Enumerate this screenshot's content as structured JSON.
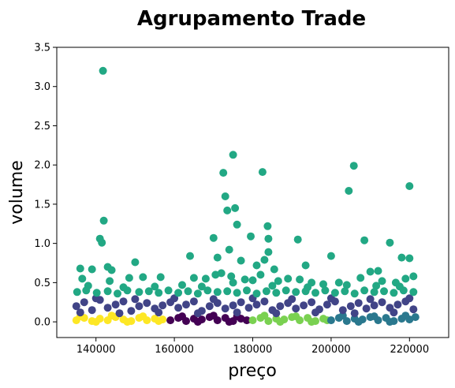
{
  "chart_data": {
    "type": "scatter",
    "title": "Agrupamento Trade",
    "xlabel": "preço",
    "ylabel": "volume",
    "xlim": [
      130000,
      230000
    ],
    "ylim": [
      -0.2,
      3.5
    ],
    "xticks": [
      140000,
      160000,
      180000,
      200000,
      220000
    ],
    "yticks": [
      0.0,
      0.5,
      1.0,
      1.5,
      2.0,
      2.5,
      3.0,
      3.5
    ],
    "xtick_labels": [
      "140000",
      "160000",
      "180000",
      "200000",
      "220000"
    ],
    "ytick_labels": [
      "0.0",
      "0.5",
      "1.0",
      "1.5",
      "2.0",
      "2.5",
      "3.0",
      "3.5"
    ],
    "grid": false,
    "series": [
      {
        "color": "#fde725",
        "points": [
          [
            135000,
            0.02
          ],
          [
            137000,
            0.05
          ],
          [
            139000,
            0.01
          ],
          [
            141000,
            0.04
          ],
          [
            143000,
            0.02
          ],
          [
            145000,
            0.06
          ],
          [
            147000,
            0.03
          ],
          [
            149000,
            0.01
          ],
          [
            151000,
            0.05
          ],
          [
            153000,
            0.02
          ],
          [
            155000,
            0.04
          ],
          [
            157000,
            0.03
          ],
          [
            136000,
            0.07
          ],
          [
            144000,
            0.08
          ],
          [
            152000,
            0.07
          ],
          [
            140000,
            0.0
          ],
          [
            148000,
            0.0
          ],
          [
            156000,
            0.01
          ]
        ]
      },
      {
        "color": "#440154",
        "points": [
          [
            159000,
            0.02
          ],
          [
            161000,
            0.05
          ],
          [
            163000,
            0.01
          ],
          [
            165000,
            0.04
          ],
          [
            167000,
            0.03
          ],
          [
            169000,
            0.06
          ],
          [
            171000,
            0.02
          ],
          [
            173000,
            0.05
          ],
          [
            175000,
            0.01
          ],
          [
            177000,
            0.04
          ],
          [
            178500,
            0.02
          ],
          [
            162000,
            0.07
          ],
          [
            170000,
            0.08
          ],
          [
            176000,
            0.07
          ],
          [
            166000,
            0.0
          ],
          [
            174000,
            0.0
          ]
        ]
      },
      {
        "color": "#7ad151",
        "points": [
          [
            180000,
            0.02
          ],
          [
            182000,
            0.05
          ],
          [
            184000,
            0.01
          ],
          [
            186000,
            0.04
          ],
          [
            188000,
            0.03
          ],
          [
            190000,
            0.06
          ],
          [
            192000,
            0.02
          ],
          [
            194000,
            0.05
          ],
          [
            196000,
            0.01
          ],
          [
            198000,
            0.04
          ],
          [
            199000,
            0.02
          ],
          [
            183000,
            0.08
          ],
          [
            191000,
            0.07
          ],
          [
            187000,
            0.0
          ],
          [
            195000,
            0.0
          ]
        ]
      },
      {
        "color": "#2a788e",
        "points": [
          [
            200000,
            0.02
          ],
          [
            202000,
            0.05
          ],
          [
            204000,
            0.01
          ],
          [
            206000,
            0.04
          ],
          [
            208000,
            0.03
          ],
          [
            210000,
            0.06
          ],
          [
            212000,
            0.02
          ],
          [
            214000,
            0.05
          ],
          [
            216000,
            0.01
          ],
          [
            218000,
            0.04
          ],
          [
            220000,
            0.03
          ],
          [
            221500,
            0.06
          ],
          [
            203000,
            0.08
          ],
          [
            211000,
            0.07
          ],
          [
            219000,
            0.08
          ],
          [
            207000,
            0.0
          ],
          [
            215000,
            0.0
          ]
        ]
      },
      {
        "color": "#414487",
        "points": [
          [
            135000,
            0.2
          ],
          [
            137000,
            0.25
          ],
          [
            139000,
            0.15
          ],
          [
            141000,
            0.28
          ],
          [
            143000,
            0.18
          ],
          [
            145000,
            0.22
          ],
          [
            147000,
            0.26
          ],
          [
            149000,
            0.14
          ],
          [
            151000,
            0.2
          ],
          [
            153000,
            0.24
          ],
          [
            155000,
            0.17
          ],
          [
            157000,
            0.21
          ],
          [
            159000,
            0.25
          ],
          [
            161000,
            0.18
          ],
          [
            163000,
            0.22
          ],
          [
            165000,
            0.26
          ],
          [
            167000,
            0.14
          ],
          [
            169000,
            0.2
          ],
          [
            171000,
            0.24
          ],
          [
            173000,
            0.17
          ],
          [
            175000,
            0.21
          ],
          [
            177000,
            0.25
          ],
          [
            179000,
            0.18
          ],
          [
            181000,
            0.22
          ],
          [
            183000,
            0.26
          ],
          [
            185000,
            0.15
          ],
          [
            187000,
            0.2
          ],
          [
            189000,
            0.24
          ],
          [
            191000,
            0.17
          ],
          [
            193000,
            0.21
          ],
          [
            195000,
            0.25
          ],
          [
            197000,
            0.16
          ],
          [
            199000,
            0.22
          ],
          [
            201000,
            0.26
          ],
          [
            203000,
            0.15
          ],
          [
            205000,
            0.2
          ],
          [
            207000,
            0.24
          ],
          [
            209000,
            0.17
          ],
          [
            211000,
            0.21
          ],
          [
            213000,
            0.25
          ],
          [
            215000,
            0.18
          ],
          [
            217000,
            0.22
          ],
          [
            219000,
            0.26
          ],
          [
            221000,
            0.16
          ],
          [
            136000,
            0.12
          ],
          [
            146000,
            0.11
          ],
          [
            156000,
            0.12
          ],
          [
            166000,
            0.11
          ],
          [
            176000,
            0.12
          ],
          [
            186000,
            0.11
          ],
          [
            196000,
            0.12
          ],
          [
            206000,
            0.11
          ],
          [
            216000,
            0.12
          ],
          [
            140000,
            0.3
          ],
          [
            150000,
            0.29
          ],
          [
            160000,
            0.3
          ],
          [
            170000,
            0.29
          ],
          [
            180000,
            0.3
          ],
          [
            190000,
            0.29
          ],
          [
            200000,
            0.3
          ],
          [
            210000,
            0.29
          ],
          [
            220000,
            0.3
          ]
        ]
      },
      {
        "color": "#22a884",
        "points": [
          [
            141800,
            3.2
          ],
          [
            142000,
            1.29
          ],
          [
            141000,
            1.06
          ],
          [
            141500,
            1.01
          ],
          [
            175000,
            2.13
          ],
          [
            172500,
            1.9
          ],
          [
            182500,
            1.91
          ],
          [
            205800,
            1.99
          ],
          [
            220000,
            1.73
          ],
          [
            204500,
            1.67
          ],
          [
            173000,
            1.6
          ],
          [
            173500,
            1.42
          ],
          [
            175500,
            1.45
          ],
          [
            176000,
            1.24
          ],
          [
            183800,
            1.22
          ],
          [
            170000,
            1.07
          ],
          [
            179500,
            1.09
          ],
          [
            191500,
            1.05
          ],
          [
            184000,
            1.06
          ],
          [
            208500,
            1.04
          ],
          [
            215000,
            1.01
          ],
          [
            150000,
            0.76
          ],
          [
            143000,
            0.7
          ],
          [
            136000,
            0.68
          ],
          [
            139000,
            0.67
          ],
          [
            144000,
            0.66
          ],
          [
            148500,
            0.56
          ],
          [
            156500,
            0.57
          ],
          [
            164000,
            0.84
          ],
          [
            171000,
            0.82
          ],
          [
            174000,
            0.92
          ],
          [
            177000,
            0.78
          ],
          [
            181000,
            0.72
          ],
          [
            183000,
            0.79
          ],
          [
            184000,
            0.89
          ],
          [
            185500,
            0.67
          ],
          [
            193500,
            0.72
          ],
          [
            200000,
            0.84
          ],
          [
            212000,
            0.65
          ],
          [
            218000,
            0.82
          ],
          [
            220000,
            0.81
          ],
          [
            135200,
            0.38
          ],
          [
            137500,
            0.4
          ],
          [
            140200,
            0.37
          ],
          [
            143000,
            0.39
          ],
          [
            145500,
            0.36
          ],
          [
            148000,
            0.4
          ],
          [
            151000,
            0.38
          ],
          [
            153500,
            0.39
          ],
          [
            156000,
            0.37
          ],
          [
            158500,
            0.4
          ],
          [
            161000,
            0.37
          ],
          [
            163500,
            0.39
          ],
          [
            166000,
            0.36
          ],
          [
            168500,
            0.4
          ],
          [
            171000,
            0.38
          ],
          [
            173500,
            0.39
          ],
          [
            176000,
            0.37
          ],
          [
            178500,
            0.4
          ],
          [
            181000,
            0.36
          ],
          [
            183500,
            0.39
          ],
          [
            186000,
            0.37
          ],
          [
            188500,
            0.4
          ],
          [
            191000,
            0.38
          ],
          [
            193500,
            0.39
          ],
          [
            196000,
            0.37
          ],
          [
            198500,
            0.4
          ],
          [
            201000,
            0.37
          ],
          [
            203500,
            0.39
          ],
          [
            206000,
            0.36
          ],
          [
            208500,
            0.4
          ],
          [
            211000,
            0.38
          ],
          [
            213500,
            0.39
          ],
          [
            216000,
            0.37
          ],
          [
            218500,
            0.4
          ],
          [
            221000,
            0.38
          ],
          [
            136500,
            0.55
          ],
          [
            143500,
            0.52
          ],
          [
            152000,
            0.57
          ],
          [
            165000,
            0.56
          ],
          [
            168000,
            0.55
          ],
          [
            170500,
            0.6
          ],
          [
            172000,
            0.62
          ],
          [
            174500,
            0.58
          ],
          [
            178000,
            0.54
          ],
          [
            180000,
            0.53
          ],
          [
            182000,
            0.6
          ],
          [
            186500,
            0.52
          ],
          [
            189000,
            0.55
          ],
          [
            192000,
            0.54
          ],
          [
            195000,
            0.5
          ],
          [
            198000,
            0.48
          ],
          [
            202000,
            0.5
          ],
          [
            207500,
            0.56
          ],
          [
            210000,
            0.64
          ],
          [
            213000,
            0.52
          ],
          [
            216500,
            0.5
          ],
          [
            219000,
            0.55
          ],
          [
            221000,
            0.58
          ],
          [
            138000,
            0.46
          ],
          [
            147000,
            0.44
          ],
          [
            155000,
            0.45
          ],
          [
            162000,
            0.47
          ],
          [
            167000,
            0.45
          ],
          [
            175000,
            0.5
          ],
          [
            185000,
            0.46
          ],
          [
            194000,
            0.44
          ],
          [
            204000,
            0.47
          ],
          [
            211500,
            0.46
          ],
          [
            217500,
            0.45
          ]
        ]
      }
    ]
  }
}
